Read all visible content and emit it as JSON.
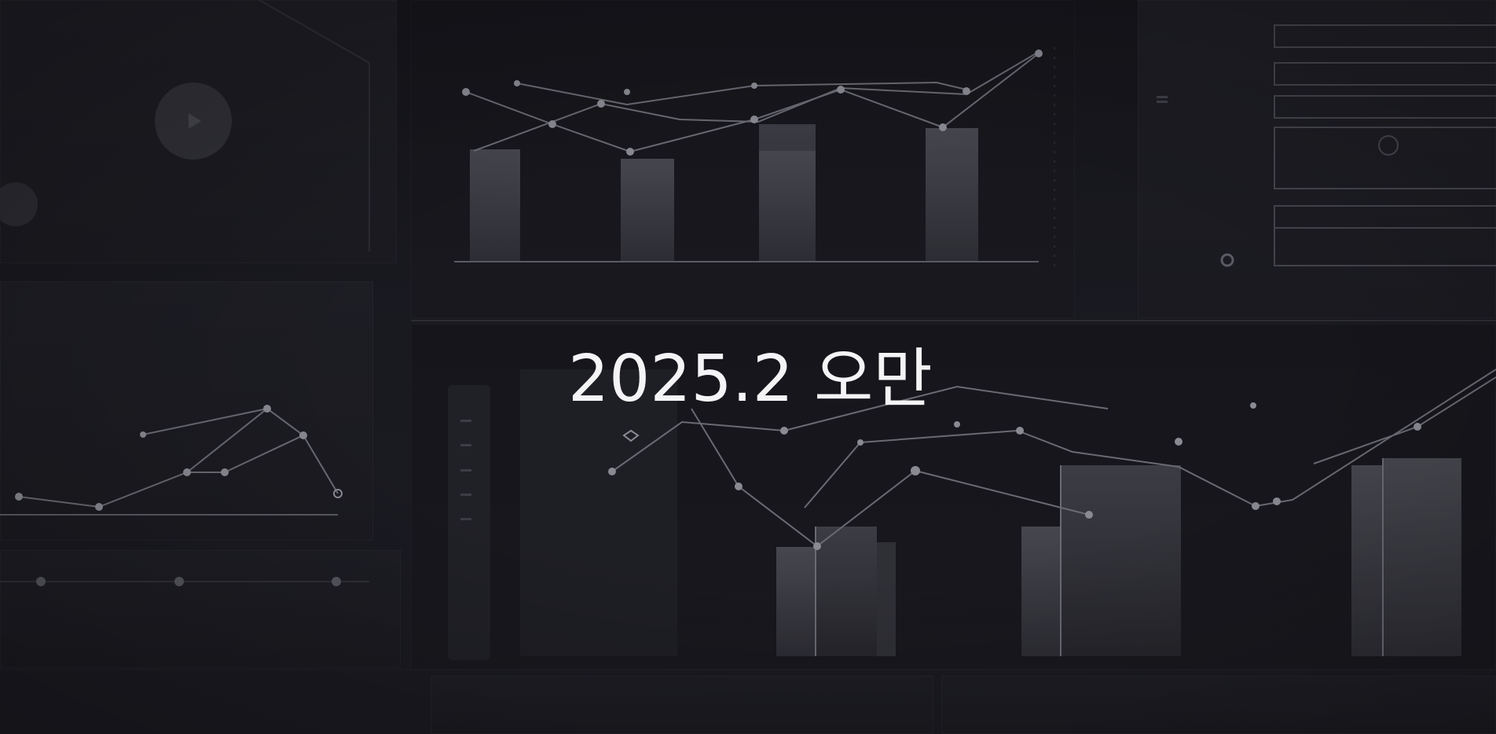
{
  "headline": {
    "text": "2025.2 오만"
  },
  "colors": {
    "background": "#17171d",
    "headline_text": "#f4f4f6",
    "chart_lines": "#5a5a63",
    "bars": "#3a3a42"
  }
}
